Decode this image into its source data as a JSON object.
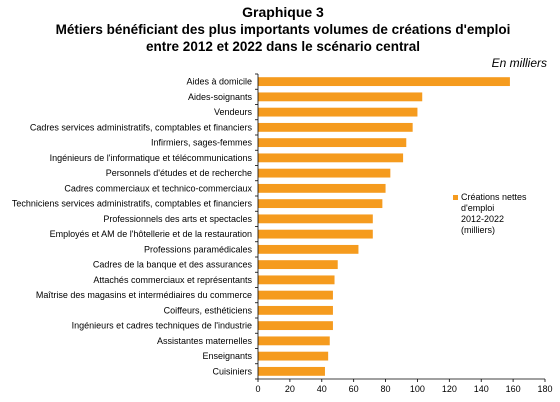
{
  "chart_data": {
    "type": "bar",
    "orientation": "horizontal",
    "title_line1": "Graphique 3",
    "title_line2": "Métiers bénéficiant des plus importants volumes de créations d'emploi",
    "title_line3": "entre 2012 et 2022 dans le scénario central",
    "unit": "En milliers",
    "categories": [
      "Aides à domicile",
      "Aides-soignants",
      "Vendeurs",
      "Cadres services administratifs, comptables et financiers",
      "Infirmiers, sages-femmes",
      "Ingénieurs de l'informatique et télécommunications",
      "Personnels d'études et de recherche",
      "Cadres commerciaux et technico-commerciaux",
      "Techniciens services administratifs, comptables et financiers",
      "Professionnels des arts et spectacles",
      "Employés et AM de l'hôtellerie et de la restauration",
      "Professions paramédicales",
      "Cadres de la banque et des assurances",
      "Attachés commerciaux et représentants",
      "Maîtrise des magasins et intermédiaires du commerce",
      "Coiffeurs, esthéticiens",
      "Ingénieurs et cadres techniques de l'industrie",
      "Assistantes maternelles",
      "Enseignants",
      "Cuisiniers"
    ],
    "series": [
      {
        "name": "Créations nettes d'emploi 2012-2022 (milliers)",
        "values": [
          158,
          103,
          100,
          97,
          93,
          91,
          83,
          80,
          78,
          72,
          72,
          63,
          50,
          48,
          47,
          47,
          47,
          45,
          44,
          42
        ]
      }
    ],
    "legend_lines": [
      "Créations nettes",
      "d'emploi",
      "2012-2022",
      "(milliers)"
    ],
    "legend_position": "right",
    "xlim": [
      0,
      180
    ],
    "xticks": [
      "0",
      "20",
      "40",
      "60",
      "80",
      "100",
      "120",
      "140",
      "160",
      "180"
    ],
    "grid": false,
    "bar_color": "#F59B1E"
  }
}
